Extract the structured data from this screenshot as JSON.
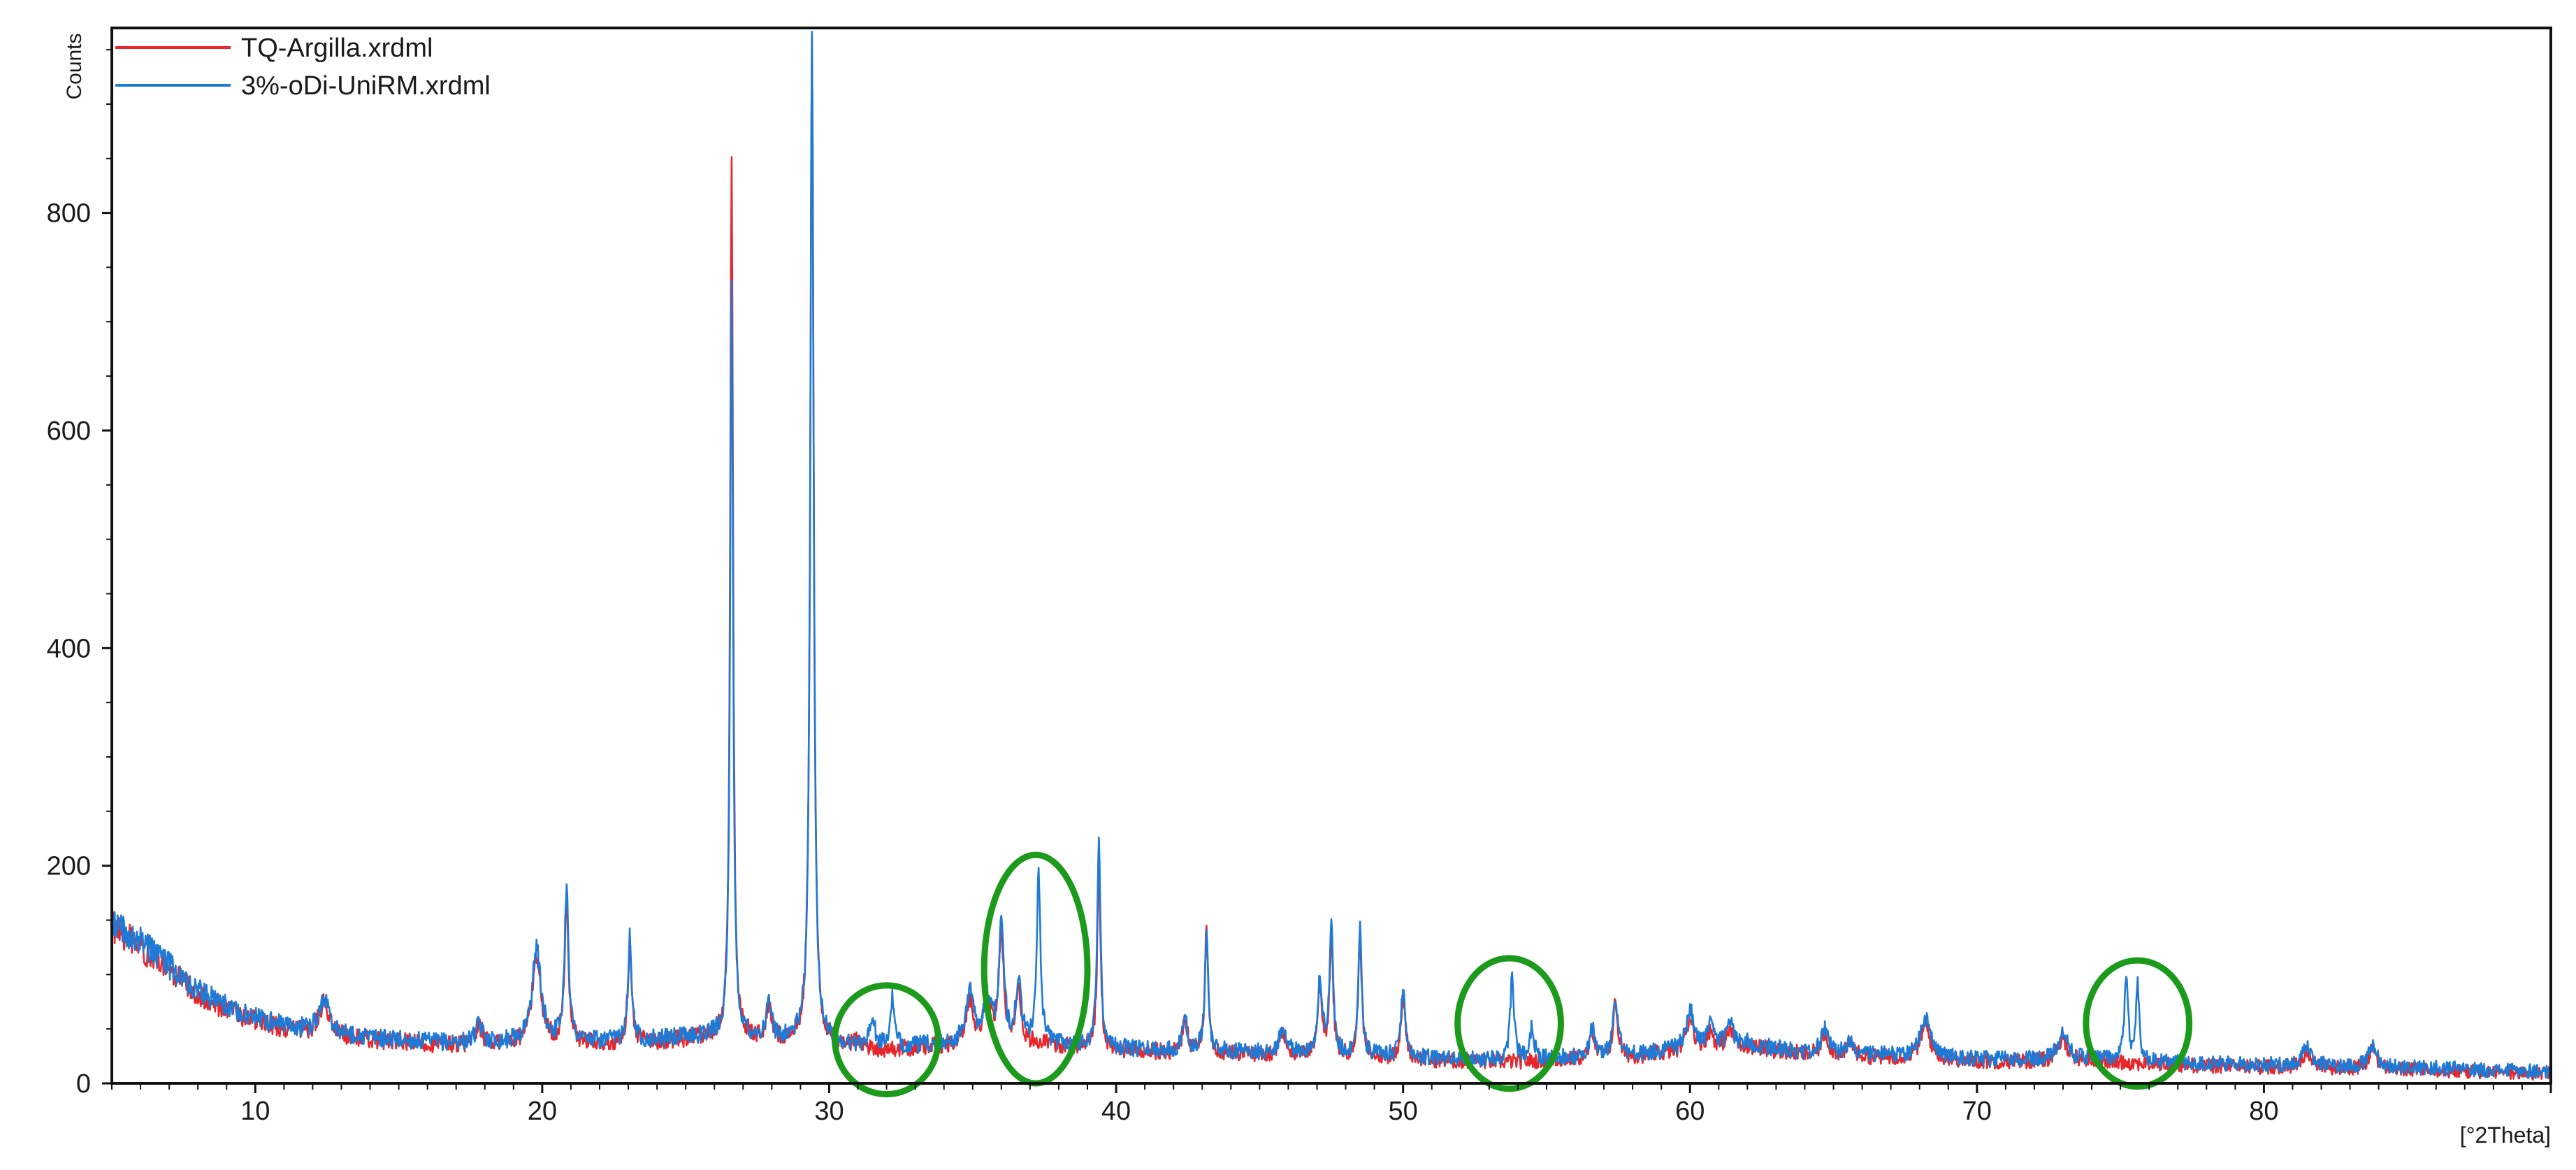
{
  "chart_data": {
    "type": "line",
    "title": "",
    "xlabel": "[°2Theta]",
    "ylabel": "Counts",
    "xlim": [
      5,
      90
    ],
    "ylim": [
      0,
      970
    ],
    "x_ticks": [
      10,
      20,
      30,
      40,
      50,
      60,
      70,
      80
    ],
    "y_ticks": [
      0,
      200,
      400,
      600,
      800
    ],
    "grid": false,
    "legend_position": "top-left",
    "colors": {
      "TQ-Argilla.xrdml": "#e8262b",
      "3%-oDi-UniRM.xrdml": "#1f7ad6",
      "highlight": "#1c9a1c"
    },
    "series": [
      {
        "name": "TQ-Argilla.xrdml",
        "color": "#e8262b",
        "background": [
          [
            5,
            145
          ],
          [
            6,
            125
          ],
          [
            7,
            103
          ],
          [
            8,
            82
          ],
          [
            9,
            68
          ],
          [
            10,
            57
          ],
          [
            11,
            50
          ],
          [
            12,
            46
          ],
          [
            14,
            40
          ],
          [
            16,
            36
          ],
          [
            18,
            35
          ],
          [
            20,
            37
          ],
          [
            22,
            36
          ],
          [
            24,
            38
          ],
          [
            26,
            42
          ],
          [
            28,
            39
          ],
          [
            30,
            34
          ],
          [
            32,
            30
          ],
          [
            34,
            34
          ],
          [
            36,
            38
          ],
          [
            38,
            35
          ],
          [
            40,
            30
          ],
          [
            42,
            28
          ],
          [
            44,
            27
          ],
          [
            46,
            25
          ],
          [
            48,
            24
          ],
          [
            50,
            22
          ],
          [
            52,
            20
          ],
          [
            54,
            20
          ],
          [
            56,
            22
          ],
          [
            58,
            24
          ],
          [
            60,
            30
          ],
          [
            62,
            34
          ],
          [
            64,
            26
          ],
          [
            66,
            24
          ],
          [
            68,
            23
          ],
          [
            70,
            20
          ],
          [
            72,
            20
          ],
          [
            74,
            21
          ],
          [
            76,
            18
          ],
          [
            78,
            16
          ],
          [
            80,
            15
          ],
          [
            82,
            14
          ],
          [
            84,
            13
          ],
          [
            86,
            12
          ],
          [
            88,
            10
          ],
          [
            90,
            9
          ]
        ],
        "peaks": [
          [
            12.4,
            30,
            0.2
          ],
          [
            17.8,
            15,
            0.15
          ],
          [
            19.8,
            80,
            0.18
          ],
          [
            20.85,
            130,
            0.08
          ],
          [
            23.05,
            90,
            0.08
          ],
          [
            26.6,
            810,
            0.06
          ],
          [
            27.9,
            30,
            0.1
          ],
          [
            29.4,
            925,
            0.07
          ],
          [
            31.0,
            8,
            0.15
          ],
          [
            34.9,
            40,
            0.15
          ],
          [
            35.5,
            35,
            0.15
          ],
          [
            36.0,
            100,
            0.1
          ],
          [
            36.6,
            50,
            0.1
          ],
          [
            39.4,
            160,
            0.07
          ],
          [
            42.4,
            30,
            0.1
          ],
          [
            43.15,
            115,
            0.07
          ],
          [
            45.8,
            20,
            0.15
          ],
          [
            47.1,
            60,
            0.1
          ],
          [
            47.5,
            110,
            0.07
          ],
          [
            48.5,
            115,
            0.07
          ],
          [
            50.0,
            55,
            0.1
          ],
          [
            56.6,
            25,
            0.1
          ],
          [
            57.4,
            50,
            0.1
          ],
          [
            60.0,
            30,
            0.15
          ],
          [
            60.7,
            15,
            0.15
          ],
          [
            61.4,
            15,
            0.15
          ],
          [
            64.7,
            20,
            0.15
          ],
          [
            65.6,
            12,
            0.15
          ],
          [
            68.2,
            30,
            0.2
          ],
          [
            73.0,
            20,
            0.2
          ],
          [
            81.5,
            15,
            0.2
          ],
          [
            83.8,
            20,
            0.15
          ]
        ]
      },
      {
        "name": "3%-oDi-UniRM.xrdml",
        "color": "#1f7ad6",
        "background": [
          [
            5,
            150
          ],
          [
            6,
            130
          ],
          [
            7,
            108
          ],
          [
            8,
            86
          ],
          [
            9,
            71
          ],
          [
            10,
            60
          ],
          [
            11,
            53
          ],
          [
            12,
            48
          ],
          [
            14,
            42
          ],
          [
            16,
            38
          ],
          [
            18,
            37
          ],
          [
            20,
            39
          ],
          [
            22,
            38
          ],
          [
            24,
            40
          ],
          [
            26,
            44
          ],
          [
            28,
            41
          ],
          [
            30,
            36
          ],
          [
            32,
            32
          ],
          [
            34,
            36
          ],
          [
            36,
            40
          ],
          [
            38,
            37
          ],
          [
            40,
            32
          ],
          [
            42,
            30
          ],
          [
            44,
            29
          ],
          [
            46,
            27
          ],
          [
            48,
            26
          ],
          [
            50,
            24
          ],
          [
            52,
            22
          ],
          [
            54,
            22
          ],
          [
            56,
            24
          ],
          [
            58,
            26
          ],
          [
            60,
            32
          ],
          [
            62,
            36
          ],
          [
            64,
            28
          ],
          [
            66,
            26
          ],
          [
            68,
            25
          ],
          [
            70,
            22
          ],
          [
            72,
            22
          ],
          [
            74,
            23
          ],
          [
            76,
            20
          ],
          [
            78,
            18
          ],
          [
            80,
            17
          ],
          [
            82,
            16
          ],
          [
            84,
            15
          ],
          [
            86,
            14
          ],
          [
            88,
            12
          ],
          [
            90,
            11
          ]
        ],
        "peaks": [
          [
            12.4,
            32,
            0.2
          ],
          [
            17.8,
            16,
            0.15
          ],
          [
            19.8,
            85,
            0.18
          ],
          [
            20.85,
            145,
            0.08
          ],
          [
            23.05,
            95,
            0.08
          ],
          [
            26.6,
            690,
            0.06
          ],
          [
            27.9,
            32,
            0.1
          ],
          [
            29.4,
            930,
            0.07
          ],
          [
            31.5,
            25,
            0.12
          ],
          [
            32.2,
            45,
            0.08
          ],
          [
            34.9,
            45,
            0.15
          ],
          [
            35.5,
            40,
            0.15
          ],
          [
            36.0,
            105,
            0.1
          ],
          [
            36.6,
            55,
            0.1
          ],
          [
            37.3,
            160,
            0.07
          ],
          [
            39.4,
            190,
            0.07
          ],
          [
            42.4,
            32,
            0.1
          ],
          [
            43.15,
            110,
            0.07
          ],
          [
            45.8,
            22,
            0.15
          ],
          [
            47.1,
            65,
            0.1
          ],
          [
            47.5,
            125,
            0.07
          ],
          [
            48.5,
            120,
            0.07
          ],
          [
            50.0,
            60,
            0.1
          ],
          [
            53.8,
            75,
            0.08
          ],
          [
            54.5,
            30,
            0.08
          ],
          [
            56.6,
            28,
            0.1
          ],
          [
            57.4,
            55,
            0.1
          ],
          [
            60.0,
            35,
            0.15
          ],
          [
            60.7,
            18,
            0.15
          ],
          [
            61.4,
            18,
            0.15
          ],
          [
            64.7,
            22,
            0.15
          ],
          [
            65.6,
            14,
            0.15
          ],
          [
            68.2,
            35,
            0.2
          ],
          [
            73.0,
            22,
            0.2
          ],
          [
            75.2,
            80,
            0.07
          ],
          [
            75.6,
            70,
            0.07
          ],
          [
            81.5,
            16,
            0.2
          ],
          [
            83.8,
            22,
            0.15
          ]
        ]
      }
    ],
    "annotations": [
      {
        "shape": "ellipse",
        "x": 32.0,
        "y": 40,
        "rx": 1.8,
        "ry": 50
      },
      {
        "shape": "ellipse",
        "x": 37.2,
        "y": 105,
        "rx": 1.8,
        "ry": 105
      },
      {
        "shape": "ellipse",
        "x": 53.7,
        "y": 55,
        "rx": 1.8,
        "ry": 60
      },
      {
        "shape": "ellipse",
        "x": 75.6,
        "y": 55,
        "rx": 1.8,
        "ry": 58
      }
    ]
  }
}
